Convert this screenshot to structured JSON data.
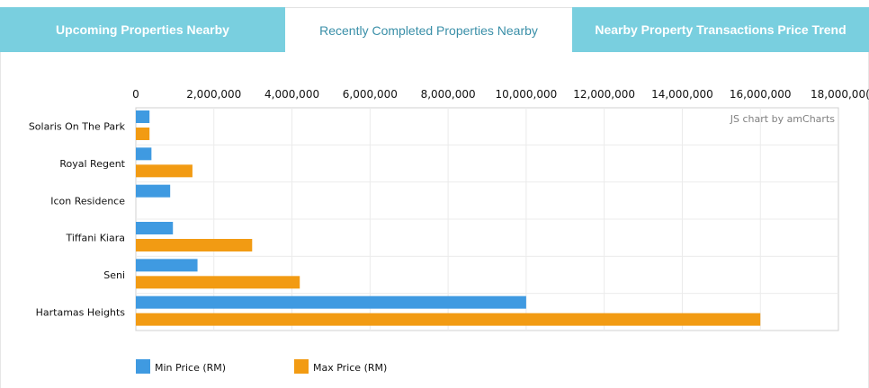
{
  "tabs": [
    {
      "label": "Upcoming Properties Nearby",
      "active": false
    },
    {
      "label": "Recently Completed Properties Nearby",
      "active": true
    },
    {
      "label": "Nearby Property Transactions Price Trend",
      "active": false
    }
  ],
  "credit": "JS chart by amCharts",
  "colors": {
    "min": "#3f9ae1",
    "max": "#f29b13",
    "tab": "#79cfdf",
    "tab_active_text": "#3a8fa8"
  },
  "chart_data": {
    "type": "bar",
    "orientation": "horizontal",
    "categories": [
      "Solaris On The Park",
      "Royal Regent",
      "Icon Residence",
      "Tiffani Kiara",
      "Seni",
      "Hartamas Heights"
    ],
    "series": [
      {
        "name": "Min Price (RM)",
        "color": "#3f9ae1",
        "values": [
          350000,
          400000,
          880000,
          950000,
          1580000,
          10000000
        ]
      },
      {
        "name": "Max Price (RM)",
        "color": "#f29b13",
        "values": [
          350000,
          1450000,
          null,
          2980000,
          4200000,
          16000000
        ]
      }
    ],
    "xlim": [
      0,
      18000000
    ],
    "xticks": [
      "0",
      "2,000,000",
      "4,000,000",
      "6,000,000",
      "8,000,000",
      "10,000,000",
      "12,000,000",
      "14,000,000",
      "16,000,000",
      "18,000,00("
    ],
    "axis_position": "top",
    "grid": true,
    "legend_position": "bottom-left"
  }
}
